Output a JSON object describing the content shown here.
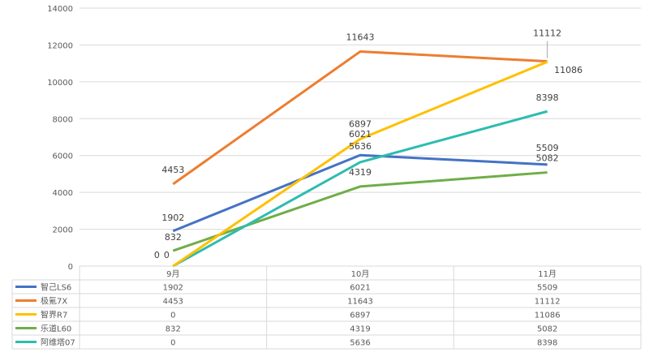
{
  "chart_data": {
    "type": "line",
    "title": "",
    "xlabel": "",
    "ylabel": "",
    "categories": [
      "9月",
      "10月",
      "11月"
    ],
    "ylim": [
      0,
      14000
    ],
    "yticks": [
      0,
      2000,
      4000,
      6000,
      8000,
      10000,
      12000,
      14000
    ],
    "grid": true,
    "legend": "data-table-bottom",
    "series": [
      {
        "name": "智己LS6",
        "color": "#4472C4",
        "values": [
          1902,
          6021,
          5509
        ]
      },
      {
        "name": "极氪7X",
        "color": "#ED7D31",
        "values": [
          4453,
          11643,
          11112
        ]
      },
      {
        "name": "智界R7",
        "color": "#FFC000",
        "values": [
          0,
          6897,
          11086
        ]
      },
      {
        "name": "乐道L60",
        "color": "#70AD47",
        "values": [
          832,
          4319,
          5082
        ]
      },
      {
        "name": "阿维塔07",
        "color": "#2EBCB0",
        "values": [
          0,
          5636,
          8398
        ]
      }
    ]
  }
}
